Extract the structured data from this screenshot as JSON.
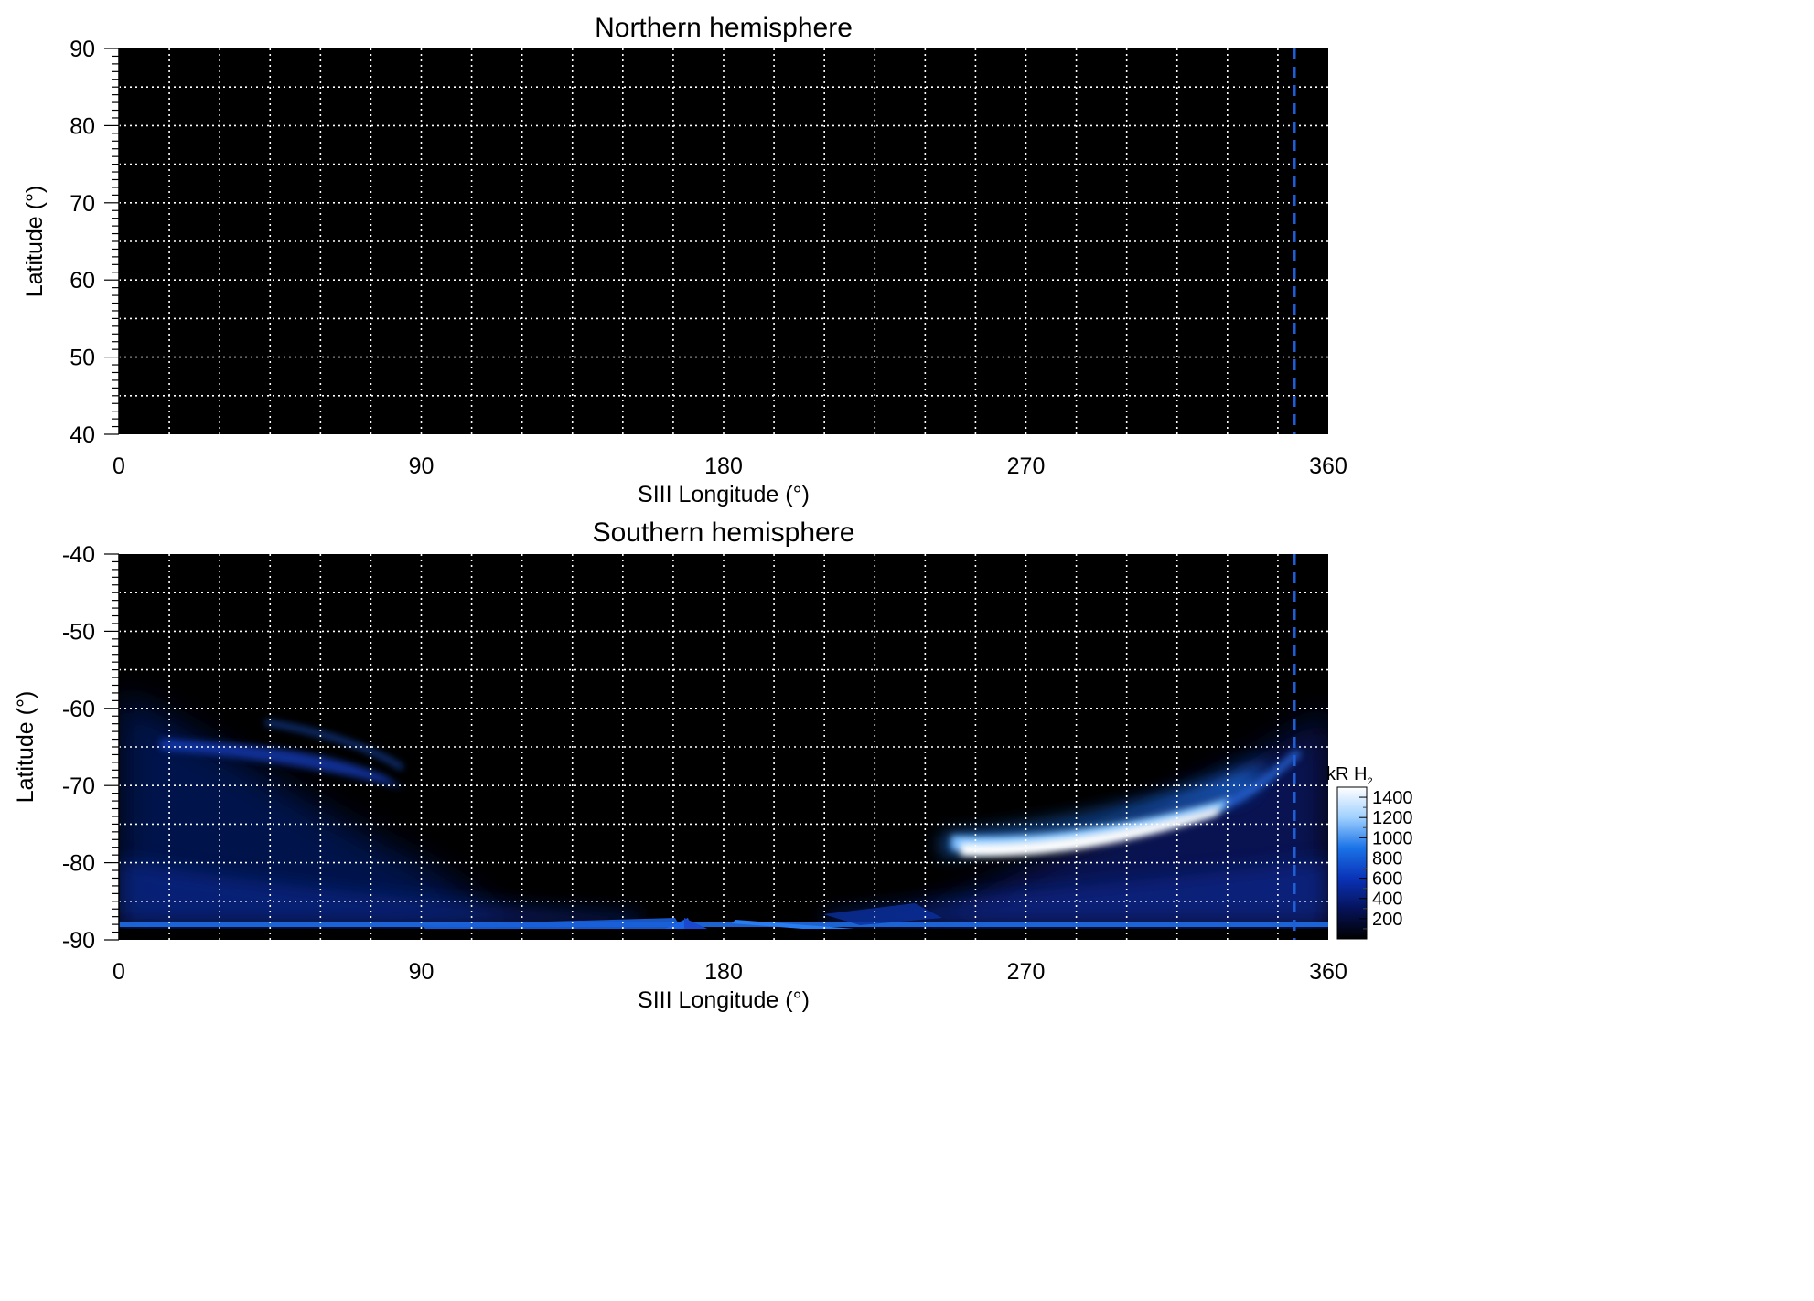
{
  "chart_data": [
    {
      "type": "heatmap",
      "title": "Northern hemisphere",
      "xlabel": "SIII Longitude (°)",
      "ylabel": "Latitude (°)",
      "xlim": [
        0,
        360
      ],
      "ylim": [
        40,
        90
      ],
      "xticks": [
        0,
        90,
        180,
        270,
        360
      ],
      "yticks": [
        40,
        50,
        60,
        70,
        80,
        90
      ],
      "grid": true,
      "grid_x_step": 15,
      "grid_y_step": 5,
      "reference_longitude": 350,
      "reference_color": "#1f5fd6",
      "background": "#000000",
      "emission": []
    },
    {
      "type": "heatmap",
      "title": "Southern hemisphere",
      "xlabel": "SIII Longitude (°)",
      "ylabel": "Latitude (°)",
      "xlim": [
        0,
        360
      ],
      "ylim": [
        -90,
        -40
      ],
      "xticks": [
        0,
        90,
        180,
        270,
        360
      ],
      "yticks": [
        -90,
        -80,
        -70,
        -60,
        -50,
        -40
      ],
      "grid": true,
      "grid_x_step": 15,
      "grid_y_step": 5,
      "reference_longitude": 350,
      "reference_color": "#1f5fd6",
      "background": "#000000",
      "emission": [
        {
          "feature": "main oval",
          "lon_range": [
            245,
            330
          ],
          "lat_range": [
            -81,
            -73
          ],
          "peak_kR": 1400
        },
        {
          "feature": "main oval tail",
          "lon_range": [
            315,
            350
          ],
          "lat_range": [
            -78,
            -66
          ],
          "peak_kR": 700
        },
        {
          "feature": "dawn arc",
          "lon_range": [
            12,
            90
          ],
          "lat_range": [
            -72,
            -63
          ],
          "peak_kR": 400
        },
        {
          "feature": "limb band",
          "lon_range": [
            0,
            360
          ],
          "lat_range": [
            -90,
            -87
          ],
          "peak_kR": 500
        }
      ],
      "colorbar": {
        "title": "kR H",
        "subscript": "2",
        "range": [
          0,
          1500
        ],
        "ticks": [
          200,
          400,
          600,
          800,
          1000,
          1200,
          1400
        ],
        "colors": [
          "#000000",
          "#06135a",
          "#0a33b8",
          "#1a73e8",
          "#9fd0ff",
          "#ffffff"
        ]
      }
    }
  ]
}
